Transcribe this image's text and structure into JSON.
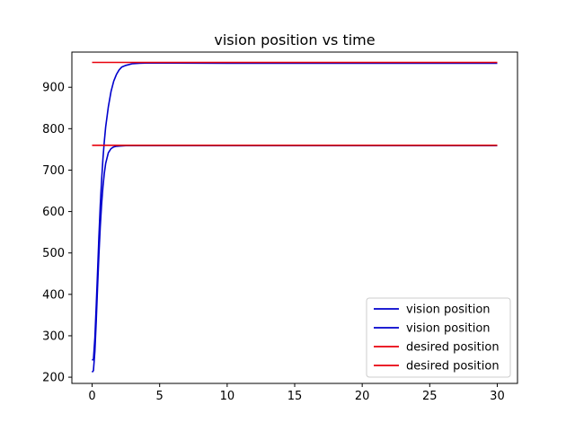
{
  "chart_data": {
    "type": "line",
    "title": "vision position vs time",
    "xlabel": "",
    "ylabel": "",
    "xlim": [
      -1.5,
      31.5
    ],
    "ylim": [
      185,
      985
    ],
    "xticks": [
      0,
      5,
      10,
      15,
      20,
      25,
      30
    ],
    "yticks": [
      200,
      300,
      400,
      500,
      600,
      700,
      800,
      900
    ],
    "grid": false,
    "legend_position": "bottom-right",
    "series": [
      {
        "name": "vision position",
        "color": "#0000cd",
        "x": [
          0,
          0.1,
          0.2,
          0.3,
          0.4,
          0.5,
          0.6,
          0.7,
          0.8,
          0.9,
          1.0,
          1.2,
          1.4,
          1.6,
          1.8,
          2.0,
          2.5,
          3.0,
          3.5,
          4.0,
          5.0,
          10,
          15,
          20,
          25,
          30
        ],
        "y": [
          212,
          216,
          262,
          335,
          418,
          496,
          564,
          618,
          660,
          692,
          716,
          742,
          752,
          756,
          757.5,
          758,
          759,
          759,
          759,
          759,
          759,
          759,
          759,
          759,
          759,
          759
        ]
      },
      {
        "name": "vision position",
        "color": "#0000cd",
        "x": [
          0,
          0.1,
          0.2,
          0.3,
          0.4,
          0.5,
          0.6,
          0.7,
          0.8,
          0.9,
          1.0,
          1.2,
          1.4,
          1.6,
          1.8,
          2.0,
          2.2,
          2.5,
          3.0,
          3.5,
          4.0,
          5.0,
          10,
          15,
          20,
          25,
          30
        ],
        "y": [
          241,
          243,
          295,
          372,
          455,
          540,
          615,
          676,
          728,
          769,
          804,
          853,
          890,
          915,
          931,
          942,
          949,
          953,
          957,
          958,
          958.5,
          958.5,
          958,
          958,
          958,
          958,
          958
        ]
      },
      {
        "name": "desired position",
        "color": "#e8000b",
        "x": [
          0,
          30
        ],
        "y": [
          760,
          760
        ]
      },
      {
        "name": "desired position",
        "color": "#e8000b",
        "x": [
          0,
          30
        ],
        "y": [
          960,
          960
        ]
      }
    ]
  }
}
